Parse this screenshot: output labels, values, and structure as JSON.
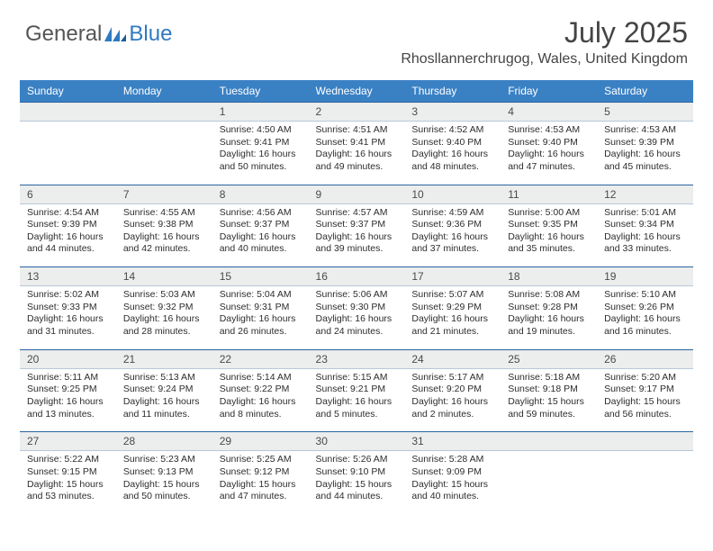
{
  "logo": {
    "text1": "General",
    "text2": "Blue"
  },
  "title": "July 2025",
  "location": "Rhosllannerchrugog, Wales, United Kingdom",
  "colors": {
    "header_bg": "#3a81c4",
    "header_text": "#ffffff",
    "daynum_bg": "#eceded",
    "daynum_border_top": "#2a63a0",
    "logo_blue": "#2f7ac0",
    "logo_gray": "#555555",
    "body_text": "#2d2d2d"
  },
  "day_labels": [
    "Sunday",
    "Monday",
    "Tuesday",
    "Wednesday",
    "Thursday",
    "Friday",
    "Saturday"
  ],
  "weeks": [
    {
      "nums": [
        "",
        "",
        "1",
        "2",
        "3",
        "4",
        "5"
      ],
      "cells": [
        null,
        null,
        {
          "sunrise": "Sunrise: 4:50 AM",
          "sunset": "Sunset: 9:41 PM",
          "daylight": "Daylight: 16 hours and 50 minutes."
        },
        {
          "sunrise": "Sunrise: 4:51 AM",
          "sunset": "Sunset: 9:41 PM",
          "daylight": "Daylight: 16 hours and 49 minutes."
        },
        {
          "sunrise": "Sunrise: 4:52 AM",
          "sunset": "Sunset: 9:40 PM",
          "daylight": "Daylight: 16 hours and 48 minutes."
        },
        {
          "sunrise": "Sunrise: 4:53 AM",
          "sunset": "Sunset: 9:40 PM",
          "daylight": "Daylight: 16 hours and 47 minutes."
        },
        {
          "sunrise": "Sunrise: 4:53 AM",
          "sunset": "Sunset: 9:39 PM",
          "daylight": "Daylight: 16 hours and 45 minutes."
        }
      ]
    },
    {
      "nums": [
        "6",
        "7",
        "8",
        "9",
        "10",
        "11",
        "12"
      ],
      "cells": [
        {
          "sunrise": "Sunrise: 4:54 AM",
          "sunset": "Sunset: 9:39 PM",
          "daylight": "Daylight: 16 hours and 44 minutes."
        },
        {
          "sunrise": "Sunrise: 4:55 AM",
          "sunset": "Sunset: 9:38 PM",
          "daylight": "Daylight: 16 hours and 42 minutes."
        },
        {
          "sunrise": "Sunrise: 4:56 AM",
          "sunset": "Sunset: 9:37 PM",
          "daylight": "Daylight: 16 hours and 40 minutes."
        },
        {
          "sunrise": "Sunrise: 4:57 AM",
          "sunset": "Sunset: 9:37 PM",
          "daylight": "Daylight: 16 hours and 39 minutes."
        },
        {
          "sunrise": "Sunrise: 4:59 AM",
          "sunset": "Sunset: 9:36 PM",
          "daylight": "Daylight: 16 hours and 37 minutes."
        },
        {
          "sunrise": "Sunrise: 5:00 AM",
          "sunset": "Sunset: 9:35 PM",
          "daylight": "Daylight: 16 hours and 35 minutes."
        },
        {
          "sunrise": "Sunrise: 5:01 AM",
          "sunset": "Sunset: 9:34 PM",
          "daylight": "Daylight: 16 hours and 33 minutes."
        }
      ]
    },
    {
      "nums": [
        "13",
        "14",
        "15",
        "16",
        "17",
        "18",
        "19"
      ],
      "cells": [
        {
          "sunrise": "Sunrise: 5:02 AM",
          "sunset": "Sunset: 9:33 PM",
          "daylight": "Daylight: 16 hours and 31 minutes."
        },
        {
          "sunrise": "Sunrise: 5:03 AM",
          "sunset": "Sunset: 9:32 PM",
          "daylight": "Daylight: 16 hours and 28 minutes."
        },
        {
          "sunrise": "Sunrise: 5:04 AM",
          "sunset": "Sunset: 9:31 PM",
          "daylight": "Daylight: 16 hours and 26 minutes."
        },
        {
          "sunrise": "Sunrise: 5:06 AM",
          "sunset": "Sunset: 9:30 PM",
          "daylight": "Daylight: 16 hours and 24 minutes."
        },
        {
          "sunrise": "Sunrise: 5:07 AM",
          "sunset": "Sunset: 9:29 PM",
          "daylight": "Daylight: 16 hours and 21 minutes."
        },
        {
          "sunrise": "Sunrise: 5:08 AM",
          "sunset": "Sunset: 9:28 PM",
          "daylight": "Daylight: 16 hours and 19 minutes."
        },
        {
          "sunrise": "Sunrise: 5:10 AM",
          "sunset": "Sunset: 9:26 PM",
          "daylight": "Daylight: 16 hours and 16 minutes."
        }
      ]
    },
    {
      "nums": [
        "20",
        "21",
        "22",
        "23",
        "24",
        "25",
        "26"
      ],
      "cells": [
        {
          "sunrise": "Sunrise: 5:11 AM",
          "sunset": "Sunset: 9:25 PM",
          "daylight": "Daylight: 16 hours and 13 minutes."
        },
        {
          "sunrise": "Sunrise: 5:13 AM",
          "sunset": "Sunset: 9:24 PM",
          "daylight": "Daylight: 16 hours and 11 minutes."
        },
        {
          "sunrise": "Sunrise: 5:14 AM",
          "sunset": "Sunset: 9:22 PM",
          "daylight": "Daylight: 16 hours and 8 minutes."
        },
        {
          "sunrise": "Sunrise: 5:15 AM",
          "sunset": "Sunset: 9:21 PM",
          "daylight": "Daylight: 16 hours and 5 minutes."
        },
        {
          "sunrise": "Sunrise: 5:17 AM",
          "sunset": "Sunset: 9:20 PM",
          "daylight": "Daylight: 16 hours and 2 minutes."
        },
        {
          "sunrise": "Sunrise: 5:18 AM",
          "sunset": "Sunset: 9:18 PM",
          "daylight": "Daylight: 15 hours and 59 minutes."
        },
        {
          "sunrise": "Sunrise: 5:20 AM",
          "sunset": "Sunset: 9:17 PM",
          "daylight": "Daylight: 15 hours and 56 minutes."
        }
      ]
    },
    {
      "nums": [
        "27",
        "28",
        "29",
        "30",
        "31",
        "",
        ""
      ],
      "cells": [
        {
          "sunrise": "Sunrise: 5:22 AM",
          "sunset": "Sunset: 9:15 PM",
          "daylight": "Daylight: 15 hours and 53 minutes."
        },
        {
          "sunrise": "Sunrise: 5:23 AM",
          "sunset": "Sunset: 9:13 PM",
          "daylight": "Daylight: 15 hours and 50 minutes."
        },
        {
          "sunrise": "Sunrise: 5:25 AM",
          "sunset": "Sunset: 9:12 PM",
          "daylight": "Daylight: 15 hours and 47 minutes."
        },
        {
          "sunrise": "Sunrise: 5:26 AM",
          "sunset": "Sunset: 9:10 PM",
          "daylight": "Daylight: 15 hours and 44 minutes."
        },
        {
          "sunrise": "Sunrise: 5:28 AM",
          "sunset": "Sunset: 9:09 PM",
          "daylight": "Daylight: 15 hours and 40 minutes."
        },
        null,
        null
      ]
    }
  ]
}
